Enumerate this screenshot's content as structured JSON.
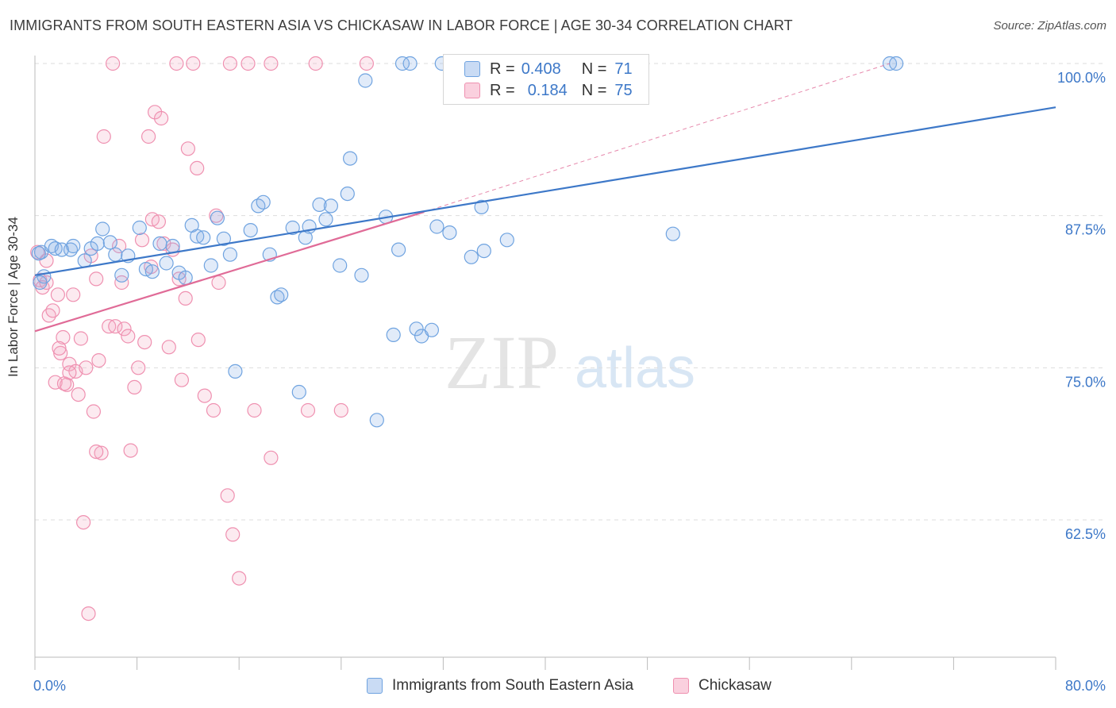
{
  "title": "IMMIGRANTS FROM SOUTH EASTERN ASIA VS CHICKASAW IN LABOR FORCE | AGE 30-34 CORRELATION CHART",
  "source": "Source: ZipAtlas.com",
  "watermark": {
    "zip": "ZIP",
    "atlas": "atlas"
  },
  "colors": {
    "blue": "#6fa3e0",
    "blue_fill": "rgba(135,175,230,0.25)",
    "blue_line": "#3d78c8",
    "pink": "#ef90b0",
    "pink_fill": "rgba(245,170,195,0.25)",
    "pink_line": "#e06b97",
    "axis_value": "#3d78c8",
    "grid": "#dddddd"
  },
  "legend": {
    "r_label": "R =",
    "n_label": "N =",
    "blue": {
      "r": "0.408",
      "n": "71"
    },
    "pink": {
      "r": "0.184",
      "n": "75"
    }
  },
  "chart_data": {
    "type": "scatter",
    "title": "IMMIGRANTS FROM SOUTH EASTERN ASIA VS CHICKASAW IN LABOR FORCE | AGE 30-34 CORRELATION CHART",
    "xlabel": "",
    "ylabel": "In Labor Force | Age 30-34",
    "xlim": [
      0,
      80
    ],
    "ylim": [
      50,
      101.5
    ],
    "x_ticks_labels": [
      "0.0%",
      "80.0%"
    ],
    "y_ticks": [
      62.5,
      75.0,
      87.5,
      100.0
    ],
    "y_tick_labels": [
      "62.5%",
      "75.0%",
      "87.5%",
      "100.0%"
    ],
    "grid": "horizontal dashed",
    "series": [
      {
        "name": "Immigrants from South Eastern Asia",
        "color": "#6fa3e0",
        "trend": {
          "x": [
            0,
            80
          ],
          "y": [
            82.6,
            96.4
          ]
        },
        "points": [
          [
            0.5,
            84.5
          ],
          [
            0.7,
            82.5
          ],
          [
            1.3,
            85.0
          ],
          [
            1.6,
            84.8
          ],
          [
            2.8,
            84.7
          ],
          [
            3.0,
            85.0
          ],
          [
            3.9,
            83.8
          ],
          [
            4.4,
            84.8
          ],
          [
            4.9,
            85.2
          ],
          [
            5.3,
            86.4
          ],
          [
            5.9,
            85.3
          ],
          [
            6.3,
            84.3
          ],
          [
            6.8,
            82.6
          ],
          [
            7.3,
            84.2
          ],
          [
            8.2,
            86.5
          ],
          [
            8.7,
            83.1
          ],
          [
            9.2,
            82.9
          ],
          [
            9.8,
            85.2
          ],
          [
            10.3,
            83.6
          ],
          [
            10.8,
            85.0
          ],
          [
            11.3,
            82.8
          ],
          [
            11.8,
            82.4
          ],
          [
            12.3,
            86.7
          ],
          [
            12.7,
            85.8
          ],
          [
            13.2,
            85.7
          ],
          [
            13.8,
            83.4
          ],
          [
            14.3,
            87.3
          ],
          [
            14.8,
            85.6
          ],
          [
            15.3,
            84.3
          ],
          [
            15.7,
            74.7
          ],
          [
            16.9,
            86.3
          ],
          [
            17.5,
            88.3
          ],
          [
            17.9,
            88.6
          ],
          [
            18.4,
            84.3
          ],
          [
            19.0,
            80.8
          ],
          [
            19.3,
            81.0
          ],
          [
            20.2,
            86.5
          ],
          [
            20.7,
            73.0
          ],
          [
            21.2,
            85.7
          ],
          [
            21.5,
            86.6
          ],
          [
            22.3,
            88.4
          ],
          [
            22.8,
            87.2
          ],
          [
            23.2,
            88.3
          ],
          [
            23.9,
            83.4
          ],
          [
            24.5,
            89.3
          ],
          [
            24.7,
            92.2
          ],
          [
            25.6,
            82.6
          ],
          [
            25.9,
            98.6
          ],
          [
            26.8,
            70.7
          ],
          [
            27.5,
            87.4
          ],
          [
            28.1,
            77.7
          ],
          [
            28.5,
            84.7
          ],
          [
            28.8,
            100.0
          ],
          [
            29.4,
            100.0
          ],
          [
            29.9,
            78.2
          ],
          [
            30.3,
            77.6
          ],
          [
            31.1,
            78.1
          ],
          [
            31.5,
            86.6
          ],
          [
            31.9,
            100.0
          ],
          [
            32.5,
            86.1
          ],
          [
            34.2,
            84.1
          ],
          [
            35.0,
            88.2
          ],
          [
            35.2,
            84.6
          ],
          [
            37.0,
            85.5
          ],
          [
            43.3,
            100.0
          ],
          [
            50.0,
            86.0
          ],
          [
            67.0,
            100.0
          ],
          [
            67.5,
            100.0
          ],
          [
            0.3,
            84.4
          ],
          [
            2.1,
            84.7
          ],
          [
            0.4,
            82.0
          ]
        ]
      },
      {
        "name": "Chickasaw",
        "color": "#ef90b0",
        "trend": {
          "x": [
            0,
            30.5
          ],
          "y": [
            78.0,
            87.8
          ]
        },
        "trend_ext": {
          "x": [
            30.5,
            67
          ],
          "y": [
            87.8,
            100.0
          ]
        },
        "points": [
          [
            0.2,
            84.5
          ],
          [
            0.4,
            82.2
          ],
          [
            0.6,
            81.6
          ],
          [
            0.9,
            82.0
          ],
          [
            1.1,
            79.3
          ],
          [
            1.4,
            79.7
          ],
          [
            1.6,
            73.8
          ],
          [
            1.8,
            81.0
          ],
          [
            2.0,
            76.2
          ],
          [
            2.2,
            77.5
          ],
          [
            2.5,
            73.6
          ],
          [
            2.7,
            75.3
          ],
          [
            3.0,
            81.0
          ],
          [
            3.2,
            74.7
          ],
          [
            3.4,
            72.8
          ],
          [
            3.6,
            77.4
          ],
          [
            3.8,
            62.3
          ],
          [
            4.0,
            75.0
          ],
          [
            4.2,
            54.8
          ],
          [
            4.4,
            84.2
          ],
          [
            4.6,
            71.4
          ],
          [
            4.8,
            82.3
          ],
          [
            5.0,
            75.6
          ],
          [
            5.2,
            68.0
          ],
          [
            5.4,
            94.0
          ],
          [
            5.8,
            78.4
          ],
          [
            6.1,
            100.0
          ],
          [
            6.3,
            78.4
          ],
          [
            6.6,
            85.0
          ],
          [
            6.8,
            82.0
          ],
          [
            7.0,
            78.2
          ],
          [
            7.3,
            77.6
          ],
          [
            7.5,
            68.2
          ],
          [
            7.8,
            73.4
          ],
          [
            8.1,
            75.0
          ],
          [
            8.4,
            85.5
          ],
          [
            8.6,
            77.1
          ],
          [
            8.9,
            94.0
          ],
          [
            9.1,
            83.3
          ],
          [
            9.2,
            87.2
          ],
          [
            9.4,
            96.0
          ],
          [
            9.7,
            87.0
          ],
          [
            9.9,
            95.5
          ],
          [
            10.1,
            85.2
          ],
          [
            10.5,
            76.7
          ],
          [
            10.8,
            84.7
          ],
          [
            11.1,
            100.0
          ],
          [
            11.3,
            82.3
          ],
          [
            11.5,
            74.0
          ],
          [
            11.8,
            80.7
          ],
          [
            12.0,
            93.0
          ],
          [
            12.4,
            100.0
          ],
          [
            12.7,
            91.4
          ],
          [
            12.8,
            77.3
          ],
          [
            13.3,
            72.7
          ],
          [
            14.0,
            71.5
          ],
          [
            14.2,
            87.5
          ],
          [
            14.4,
            82.0
          ],
          [
            15.1,
            64.5
          ],
          [
            15.3,
            100.0
          ],
          [
            15.5,
            61.3
          ],
          [
            16.0,
            57.7
          ],
          [
            16.7,
            100.0
          ],
          [
            17.2,
            71.5
          ],
          [
            18.5,
            67.6
          ],
          [
            18.5,
            100.0
          ],
          [
            21.4,
            71.5
          ],
          [
            22.0,
            100.0
          ],
          [
            24.0,
            71.5
          ],
          [
            26.0,
            100.0
          ],
          [
            4.8,
            68.1
          ],
          [
            1.9,
            76.6
          ],
          [
            2.3,
            73.7
          ],
          [
            0.9,
            83.8
          ],
          [
            2.7,
            74.6
          ]
        ]
      }
    ]
  },
  "legend_bottom": {
    "blue": "Immigrants from South Eastern Asia",
    "pink": "Chickasaw"
  }
}
